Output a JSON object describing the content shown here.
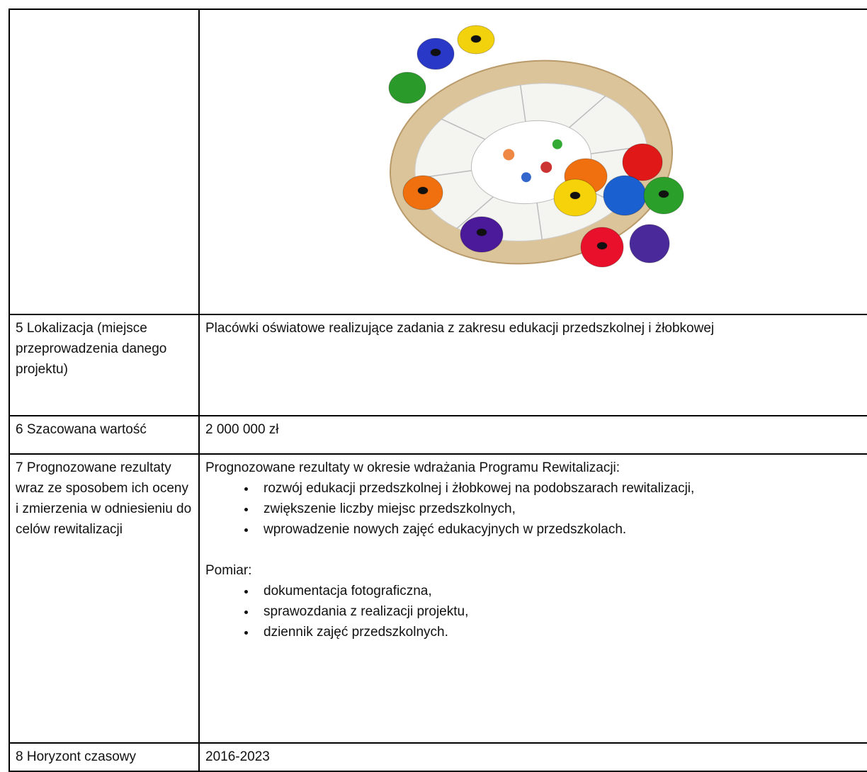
{
  "table": {
    "rows": [
      {
        "label": "5 Lokalizacja (miejsce przeprowadzenia danego projektu)",
        "content": "Placówki oświatowe realizujące zadania z zakresu edukacji przedszkolnej i żłobkowej"
      },
      {
        "label": "6 Szacowana wartość",
        "content": "2 000 000 zł"
      },
      {
        "label": "7 Prognozowane rezultaty wraz ze sposobem ich oceny i zmierzenia w odniesieniu do celów rewitalizacji",
        "intro": "Prognozowane rezultaty w okresie wdrażania Programu Rewitalizacji:",
        "results": [
          "rozwój edukacji przedszkolnej i żłobkowej na podobszarach rewitalizacji,",
          "zwiększenie liczby miejsc przedszkolnych,",
          "wprowadzenie nowych zajęć edukacyjnych w przedszkolach."
        ],
        "measure_title": "Pomiar:",
        "measures": [
          "dokumentacja fotograficzna,",
          "sprawozdania z realizacji projektu,",
          "dziennik zajęć przedszkolnych."
        ]
      },
      {
        "label": "8 Horyzont czasowy",
        "content": "2016-2023"
      }
    ]
  }
}
